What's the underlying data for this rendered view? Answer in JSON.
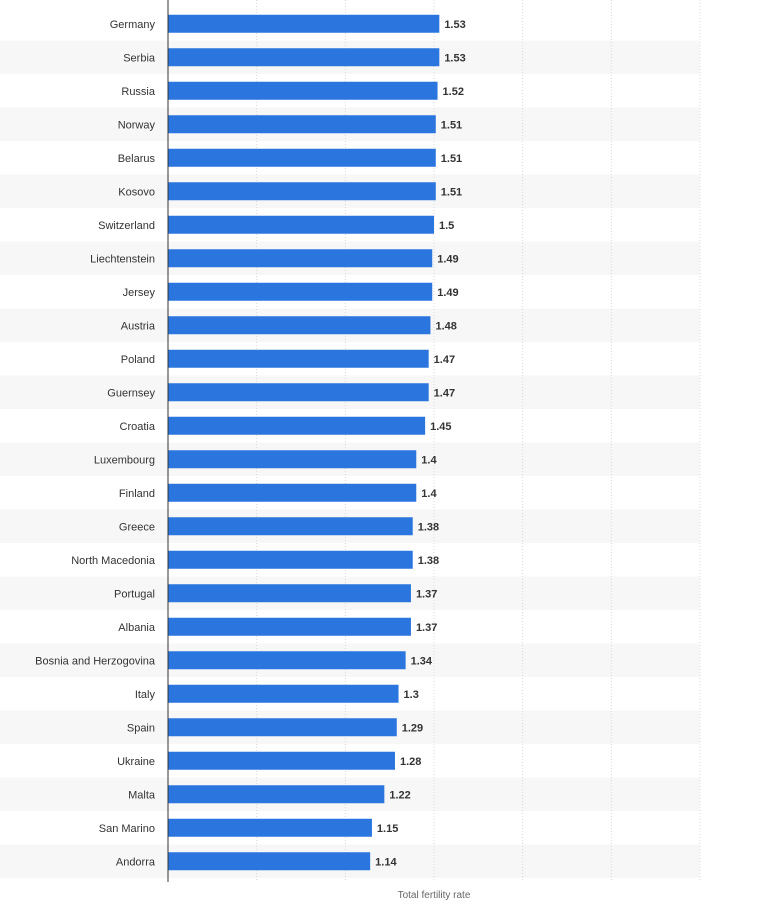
{
  "chart_data": {
    "type": "bar",
    "orientation": "horizontal",
    "title": "",
    "xlabel": "Total fertility rate",
    "ylabel": "",
    "xlim": [
      0,
      3
    ],
    "grid": true,
    "categories": [
      "Germany",
      "Serbia",
      "Russia",
      "Norway",
      "Belarus",
      "Kosovo",
      "Switzerland",
      "Liechtenstein",
      "Jersey",
      "Austria",
      "Poland",
      "Guernsey",
      "Croatia",
      "Luxembourg",
      "Finland",
      "Greece",
      "North Macedonia",
      "Portugal",
      "Albania",
      "Bosnia and Herzogovina",
      "Italy",
      "Spain",
      "Ukraine",
      "Malta",
      "San Marino",
      "Andorra"
    ],
    "values": [
      1.53,
      1.53,
      1.52,
      1.51,
      1.51,
      1.51,
      1.5,
      1.49,
      1.49,
      1.48,
      1.47,
      1.47,
      1.45,
      1.4,
      1.4,
      1.38,
      1.38,
      1.37,
      1.37,
      1.34,
      1.3,
      1.29,
      1.28,
      1.22,
      1.15,
      1.14
    ],
    "value_labels": [
      "1.53",
      "1.53",
      "1.52",
      "1.51",
      "1.51",
      "1.51",
      "1.5",
      "1.49",
      "1.49",
      "1.48",
      "1.47",
      "1.47",
      "1.45",
      "1.4",
      "1.4",
      "1.38",
      "1.38",
      "1.37",
      "1.37",
      "1.34",
      "1.3",
      "1.29",
      "1.28",
      "1.22",
      "1.15",
      "1.14"
    ],
    "colors": {
      "bar": "#2a75de",
      "stripe": "#f7f7f7",
      "grid": "#d8d8d8",
      "axis": "#333333"
    }
  }
}
